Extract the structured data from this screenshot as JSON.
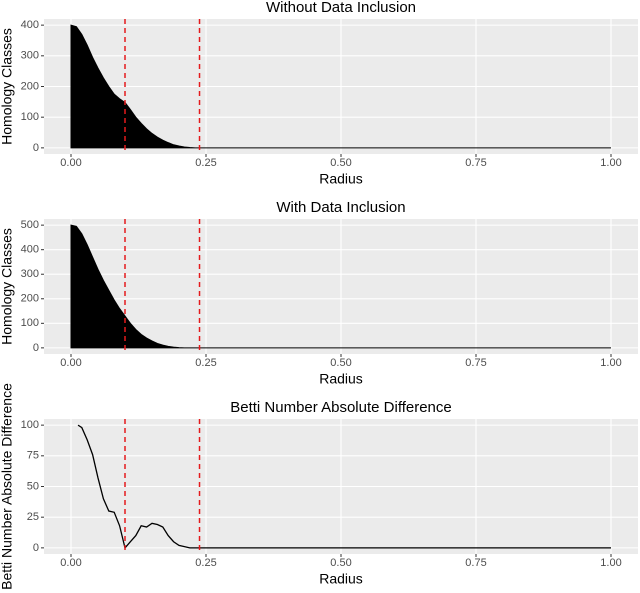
{
  "chart_data": [
    {
      "type": "area",
      "title": "Without Data Inclusion",
      "x_label": "Radius",
      "y_label": "Homology Classes",
      "x": [
        0,
        0.01,
        0.02,
        0.03,
        0.04,
        0.05,
        0.06,
        0.07,
        0.08,
        0.09,
        0.1,
        0.11,
        0.12,
        0.13,
        0.14,
        0.15,
        0.16,
        0.17,
        0.18,
        0.19,
        0.2,
        0.21,
        0.22,
        0.23,
        1.0
      ],
      "values": [
        400,
        395,
        370,
        335,
        295,
        260,
        228,
        200,
        175,
        160,
        148,
        125,
        100,
        80,
        62,
        47,
        35,
        25,
        17,
        10,
        6,
        3,
        1,
        0,
        0
      ],
      "color": "#000000",
      "vlines": {
        "values": [
          0.1,
          0.238
        ],
        "color": "#e41a1c",
        "dashed": true
      },
      "xlim": [
        -0.05,
        1.05
      ],
      "ylim": [
        -20,
        420
      ],
      "xticks": [
        {
          "value": 0,
          "label": "0.00"
        },
        {
          "value": 0.25,
          "label": "0.25"
        },
        {
          "value": 0.5,
          "label": "0.50"
        },
        {
          "value": 0.75,
          "label": "0.75"
        },
        {
          "value": 1,
          "label": "1.00"
        }
      ],
      "yticks": [
        0,
        100,
        200,
        300,
        400
      ],
      "grid": true
    },
    {
      "type": "area",
      "title": "With Data Inclusion",
      "x_label": "Radius",
      "y_label": "Homology Classes",
      "x": [
        0,
        0.01,
        0.02,
        0.03,
        0.04,
        0.05,
        0.06,
        0.07,
        0.08,
        0.09,
        0.1,
        0.11,
        0.12,
        0.13,
        0.14,
        0.15,
        0.16,
        0.17,
        0.18,
        0.19,
        0.2,
        0.21,
        0.22,
        0.23,
        1.0
      ],
      "values": [
        500,
        495,
        465,
        420,
        370,
        320,
        275,
        235,
        195,
        160,
        130,
        100,
        75,
        55,
        40,
        28,
        18,
        11,
        6,
        3,
        1,
        0,
        0,
        0,
        0
      ],
      "color": "#000000",
      "vlines": {
        "values": [
          0.1,
          0.238
        ],
        "color": "#e41a1c",
        "dashed": true
      },
      "xlim": [
        -0.05,
        1.05
      ],
      "ylim": [
        -25,
        525
      ],
      "xticks": [
        {
          "value": 0,
          "label": "0.00"
        },
        {
          "value": 0.25,
          "label": "0.25"
        },
        {
          "value": 0.5,
          "label": "0.50"
        },
        {
          "value": 0.75,
          "label": "0.75"
        },
        {
          "value": 1,
          "label": "1.00"
        }
      ],
      "yticks": [
        0,
        100,
        200,
        300,
        400,
        500
      ],
      "grid": true
    },
    {
      "type": "line",
      "title": "Betti Number Absolute Difference",
      "x_label": "Radius",
      "y_label": "Betti Number Absolute Difference",
      "x": [
        0.013,
        0.02,
        0.03,
        0.04,
        0.05,
        0.06,
        0.07,
        0.08,
        0.09,
        0.1,
        0.11,
        0.12,
        0.13,
        0.14,
        0.15,
        0.16,
        0.17,
        0.18,
        0.19,
        0.2,
        0.21,
        0.22,
        0.24,
        1.0
      ],
      "values": [
        100,
        98,
        88,
        76,
        57,
        40,
        30,
        29,
        18,
        0,
        5,
        10,
        18,
        17,
        20,
        19,
        17,
        10,
        5,
        2,
        1,
        0,
        0,
        0
      ],
      "color": "#000000",
      "vlines": {
        "values": [
          0.1,
          0.238
        ],
        "color": "#e41a1c",
        "dashed": true
      },
      "xlim": [
        -0.05,
        1.05
      ],
      "ylim": [
        -5,
        105
      ],
      "xticks": [
        {
          "value": 0,
          "label": "0.00"
        },
        {
          "value": 0.25,
          "label": "0.25"
        },
        {
          "value": 0.5,
          "label": "0.50"
        },
        {
          "value": 0.75,
          "label": "0.75"
        },
        {
          "value": 1,
          "label": "1.00"
        }
      ],
      "yticks": [
        0,
        25,
        50,
        75,
        100
      ],
      "grid": true
    }
  ]
}
